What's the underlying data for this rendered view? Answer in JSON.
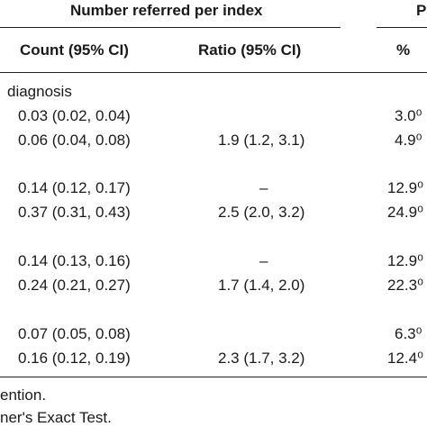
{
  "header": {
    "group_title": "Number referred per index",
    "partial_right_title": "P",
    "col_count": "Count (95% CI)",
    "col_ratio": "Ratio (95% CI)",
    "col_pct": "%"
  },
  "section_label": "diagnosis",
  "rows": [
    {
      "count": "0.03 (0.02, 0.04)",
      "ratio": "",
      "pct": "3.0⁰"
    },
    {
      "count": "0.06 (0.04, 0.08)",
      "ratio": "1.9 (1.2, 3.1)",
      "pct": "4.9⁰"
    },
    {
      "count": "0.14 (0.12, 0.17)",
      "ratio": "–",
      "pct": "12.9⁰"
    },
    {
      "count": "0.37 (0.31, 0.43)",
      "ratio": "2.5 (2.0, 3.2)",
      "pct": "24.9⁰"
    },
    {
      "count": "0.14 (0.13, 0.16)",
      "ratio": "–",
      "pct": "12.9⁰"
    },
    {
      "count": "0.24 (0.21, 0.27)",
      "ratio": "1.7 (1.4, 2.0)",
      "pct": "22.3⁰"
    },
    {
      "count": "0.07 (0.05, 0.08)",
      "ratio": "",
      "pct": "6.3⁰"
    },
    {
      "count": "0.16 (0.12, 0.19)",
      "ratio": "2.3 (1.7, 3.2)",
      "pct": "12.4⁰"
    }
  ],
  "footnotes": [
    "ention.",
    "ner's Exact Test."
  ]
}
